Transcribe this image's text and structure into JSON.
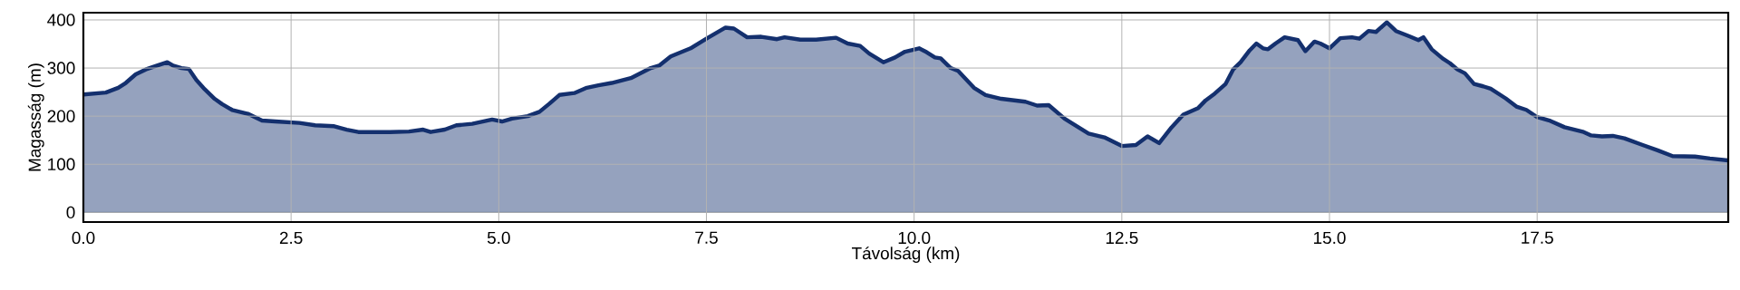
{
  "chart_data": {
    "type": "area",
    "xlabel": "Távolság (km)",
    "ylabel": "Magasság (m)",
    "xlim": [
      0,
      19.8
    ],
    "ylim": [
      -20,
      415
    ],
    "xticks": [
      {
        "value": 0,
        "label": "0.0"
      },
      2.5,
      {
        "value": 5,
        "label": "5.0"
      },
      7.5,
      {
        "value": 10,
        "label": "10.0"
      },
      12.5,
      {
        "value": 15,
        "label": "15.0"
      },
      17.5
    ],
    "yticks": [
      0,
      100,
      200,
      300,
      400
    ],
    "grid": true,
    "series": [
      {
        "color": "#14306e",
        "x": [
          0,
          0.27,
          0.42,
          0.51,
          0.63,
          0.75,
          0.87,
          1.01,
          1.08,
          1.18,
          1.27,
          1.36,
          1.46,
          1.58,
          1.67,
          1.79,
          1.98,
          2.15,
          2.31,
          2.6,
          2.79,
          3.02,
          3.17,
          3.31,
          3.5,
          3.69,
          3.92,
          4.09,
          4.18,
          4.35,
          4.49,
          4.68,
          4.92,
          5.04,
          5.16,
          5.35,
          5.49,
          5.61,
          5.73,
          5.91,
          6.06,
          6.2,
          6.36,
          6.59,
          6.83,
          6.93,
          7.07,
          7.31,
          7.5,
          7.73,
          7.83,
          7.99,
          8.16,
          8.35,
          8.44,
          8.63,
          8.82,
          9.06,
          9.2,
          9.35,
          9.46,
          9.63,
          9.77,
          9.89,
          10.06,
          10.15,
          10.25,
          10.32,
          10.44,
          10.53,
          10.72,
          10.86,
          11.05,
          11.34,
          11.48,
          11.62,
          11.81,
          12.1,
          12.29,
          12.5,
          12.67,
          12.81,
          12.95,
          13.1,
          13.24,
          13.42,
          13.51,
          13.62,
          13.75,
          13.84,
          13.93,
          14.04,
          14.12,
          14.2,
          14.26,
          14.35,
          14.46,
          14.62,
          14.71,
          14.82,
          14.89,
          15,
          15.13,
          15.27,
          15.36,
          15.47,
          15.56,
          15.69,
          15.8,
          15.96,
          16.07,
          16.13,
          16.23,
          16.36,
          16.45,
          16.54,
          16.63,
          16.74,
          16.85,
          16.94,
          17.12,
          17.25,
          17.37,
          17.5,
          17.66,
          17.83,
          18.06,
          18.15,
          18.28,
          18.41,
          18.55,
          18.77,
          18.95,
          19.13,
          19.4,
          19.58,
          19.8
        ],
        "values": [
          245,
          249,
          259,
          269,
          287,
          297,
          304,
          312,
          305,
          300,
          298,
          275,
          256,
          236,
          225,
          213,
          205,
          191,
          189,
          186,
          181,
          179,
          172,
          167,
          167,
          167,
          168,
          172,
          167,
          172,
          181,
          184,
          193,
          189,
          195,
          200,
          209,
          226,
          244,
          248,
          259,
          264,
          269,
          279,
          300,
          305,
          324,
          341,
          361,
          384,
          382,
          364,
          365,
          360,
          364,
          359,
          359,
          363,
          351,
          346,
          330,
          312,
          322,
          334,
          341,
          333,
          322,
          320,
          300,
          294,
          259,
          244,
          236,
          230,
          222,
          223,
          195,
          164,
          156,
          138,
          140,
          158,
          144,
          177,
          203,
          217,
          233,
          247,
          267,
          297,
          312,
          337,
          351,
          341,
          339,
          351,
          364,
          358,
          335,
          355,
          351,
          341,
          362,
          364,
          361,
          377,
          375,
          395,
          377,
          366,
          358,
          364,
          339,
          320,
          310,
          297,
          289,
          267,
          262,
          257,
          237,
          220,
          213,
          198,
          190,
          177,
          167,
          160,
          158,
          159,
          154,
          140,
          129,
          117,
          116,
          112,
          108
        ]
      }
    ]
  }
}
